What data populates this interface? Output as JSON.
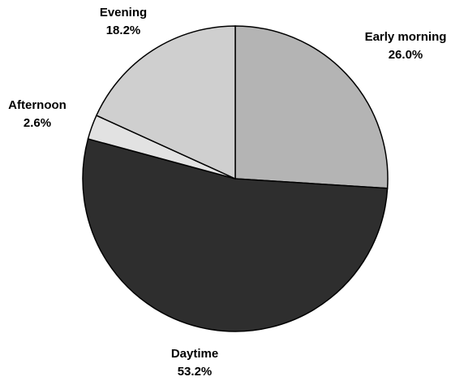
{
  "chart_data": {
    "type": "pie",
    "categories": [
      "Early morning",
      "Daytime",
      "Afternoon",
      "Evening"
    ],
    "values": [
      26.0,
      53.2,
      2.6,
      18.2
    ],
    "value_labels": [
      "26.0%",
      "53.2%",
      "2.6%",
      "18.2%"
    ],
    "colors": [
      "#b4b4b4",
      "#2e2e2e",
      "#e2e2e2",
      "#cfcfcf"
    ]
  }
}
